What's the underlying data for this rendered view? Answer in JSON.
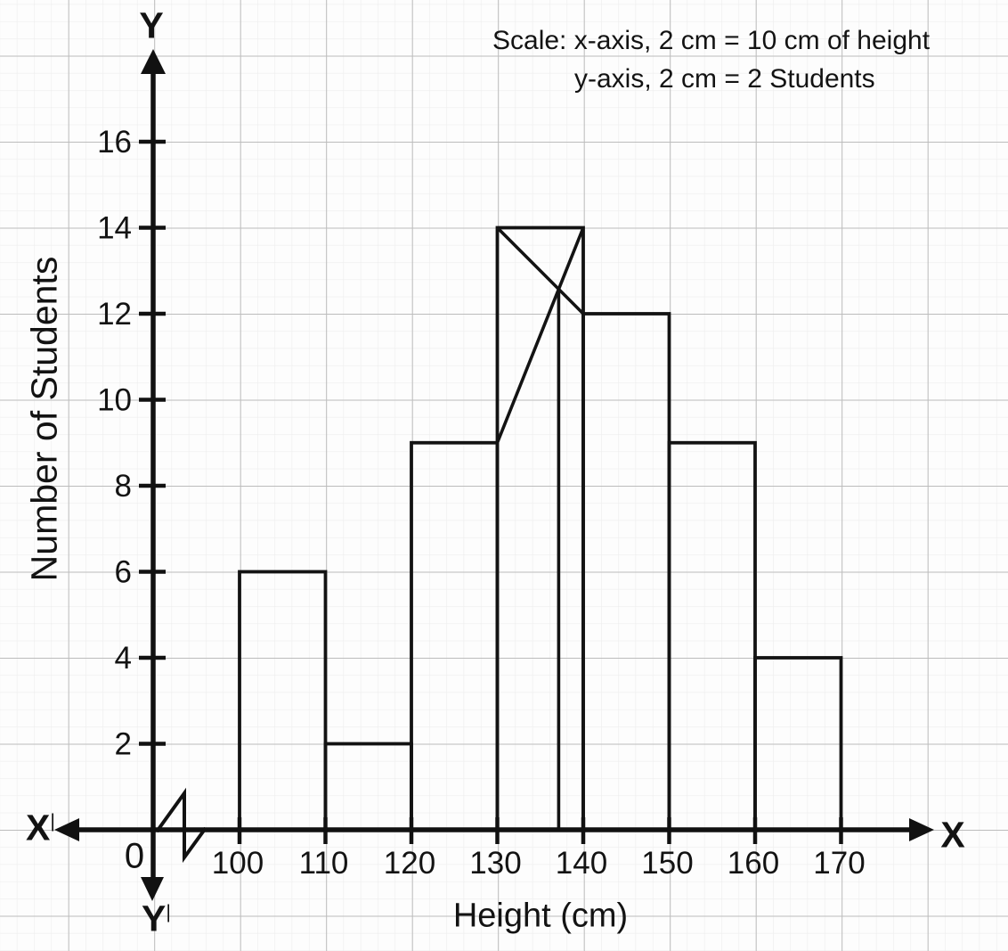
{
  "chart_data": {
    "type": "bar",
    "subtype": "histogram-with-mode-construction",
    "title": "",
    "xlabel": "Height (cm)",
    "ylabel": "Number of Students",
    "scale_note": {
      "line1": "Scale: x-axis, 2 cm = 10 cm of height",
      "line2": "y-axis, 2 cm = 2 Students"
    },
    "categories": [
      "100-110",
      "110-120",
      "120-130",
      "130-140",
      "140-150",
      "150-160",
      "160-170"
    ],
    "bin_start": 100,
    "bin_width": 10,
    "values": [
      6,
      2,
      9,
      14,
      12,
      9,
      4
    ],
    "x_tick_labels": [
      100,
      110,
      120,
      130,
      140,
      150,
      160,
      170
    ],
    "y_tick_labels": [
      2,
      4,
      6,
      8,
      10,
      12,
      14,
      16
    ],
    "xlim": [
      90,
      180
    ],
    "ylim": [
      0,
      17
    ],
    "grid": true,
    "legend": false,
    "mode_construction": {
      "line1": {
        "x1": 130,
        "y1": 14,
        "x2": 140,
        "y2": 12
      },
      "line2": {
        "x1": 130,
        "y1": 9,
        "x2": 140,
        "y2": 14
      },
      "mode_x": 137.14
    },
    "axis_letters": {
      "y_top": "Y",
      "y_bottom": "Y",
      "x_left": "X",
      "x_right": "X",
      "origin": "0",
      "prime": "|"
    },
    "colors": {
      "stroke": "#131313",
      "grid_minor": "#ededed",
      "grid_major": "#bcbcbc",
      "background": "#fdfdfd"
    }
  }
}
